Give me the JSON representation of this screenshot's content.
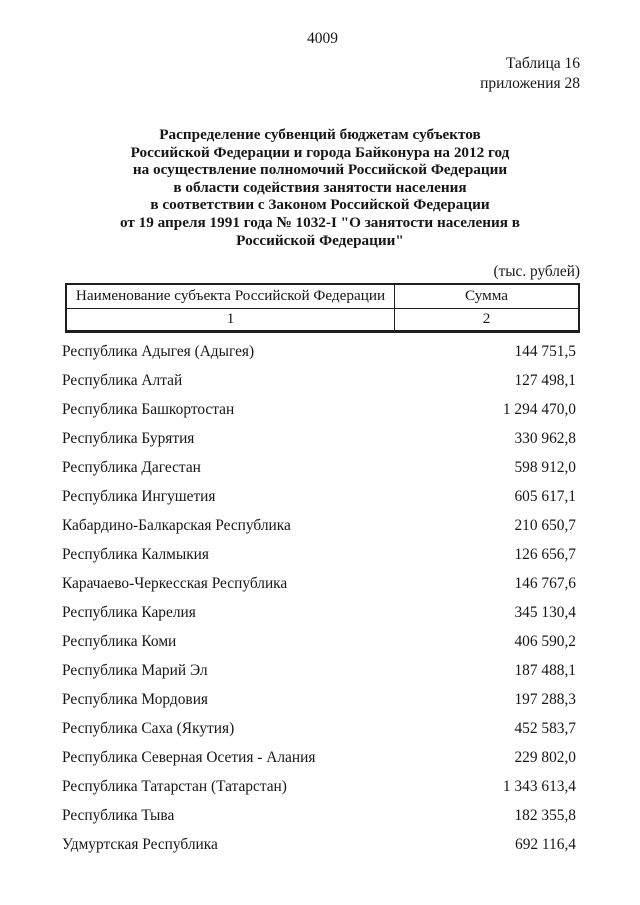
{
  "page": {
    "number": "4009",
    "table_label": "Таблица 16",
    "annex_label": "приложения 28",
    "units_label": "(тыс. рублей)"
  },
  "title": {
    "lines": [
      "Распределение субвенций бюджетам субъектов",
      "Российской Федерации и города Байконура на 2012 год",
      "на осуществление полномочий Российской Федерации",
      "в области содействия занятости населения",
      "в соответствии с Законом Российской Федерации",
      "от 19 апреля 1991 года № 1032-I \"О занятости населения в",
      "Российской Федерации\""
    ]
  },
  "table": {
    "headers": {
      "name": "Наименование субъекта Российской Федерации",
      "sum": "Сумма"
    },
    "column_numbers": {
      "name": "1",
      "sum": "2"
    },
    "rows": [
      {
        "name": "Республика Адыгея (Адыгея)",
        "value": "144 751,5"
      },
      {
        "name": "Республика Алтай",
        "value": "127 498,1"
      },
      {
        "name": "Республика Башкортостан",
        "value": "1 294 470,0"
      },
      {
        "name": "Республика Бурятия",
        "value": "330 962,8"
      },
      {
        "name": "Республика Дагестан",
        "value": "598 912,0"
      },
      {
        "name": "Республика Ингушетия",
        "value": "605 617,1"
      },
      {
        "name": "Кабардино-Балкарская Республика",
        "value": "210 650,7"
      },
      {
        "name": "Республика Калмыкия",
        "value": "126 656,7"
      },
      {
        "name": "Карачаево-Черкесская Республика",
        "value": "146 767,6"
      },
      {
        "name": "Республика Карелия",
        "value": "345 130,4"
      },
      {
        "name": "Республика Коми",
        "value": "406 590,2"
      },
      {
        "name": "Республика Марий Эл",
        "value": "187 488,1"
      },
      {
        "name": "Республика Мордовия",
        "value": "197 288,3"
      },
      {
        "name": "Республика Саха (Якутия)",
        "value": "452 583,7"
      },
      {
        "name": "Республика Северная Осетия - Алания",
        "value": "229 802,0"
      },
      {
        "name": "Республика Татарстан (Татарстан)",
        "value": "1 343 613,4"
      },
      {
        "name": "Республика Тыва",
        "value": "182 355,8"
      },
      {
        "name": "Удмуртская Республика",
        "value": "692 116,4"
      }
    ]
  }
}
